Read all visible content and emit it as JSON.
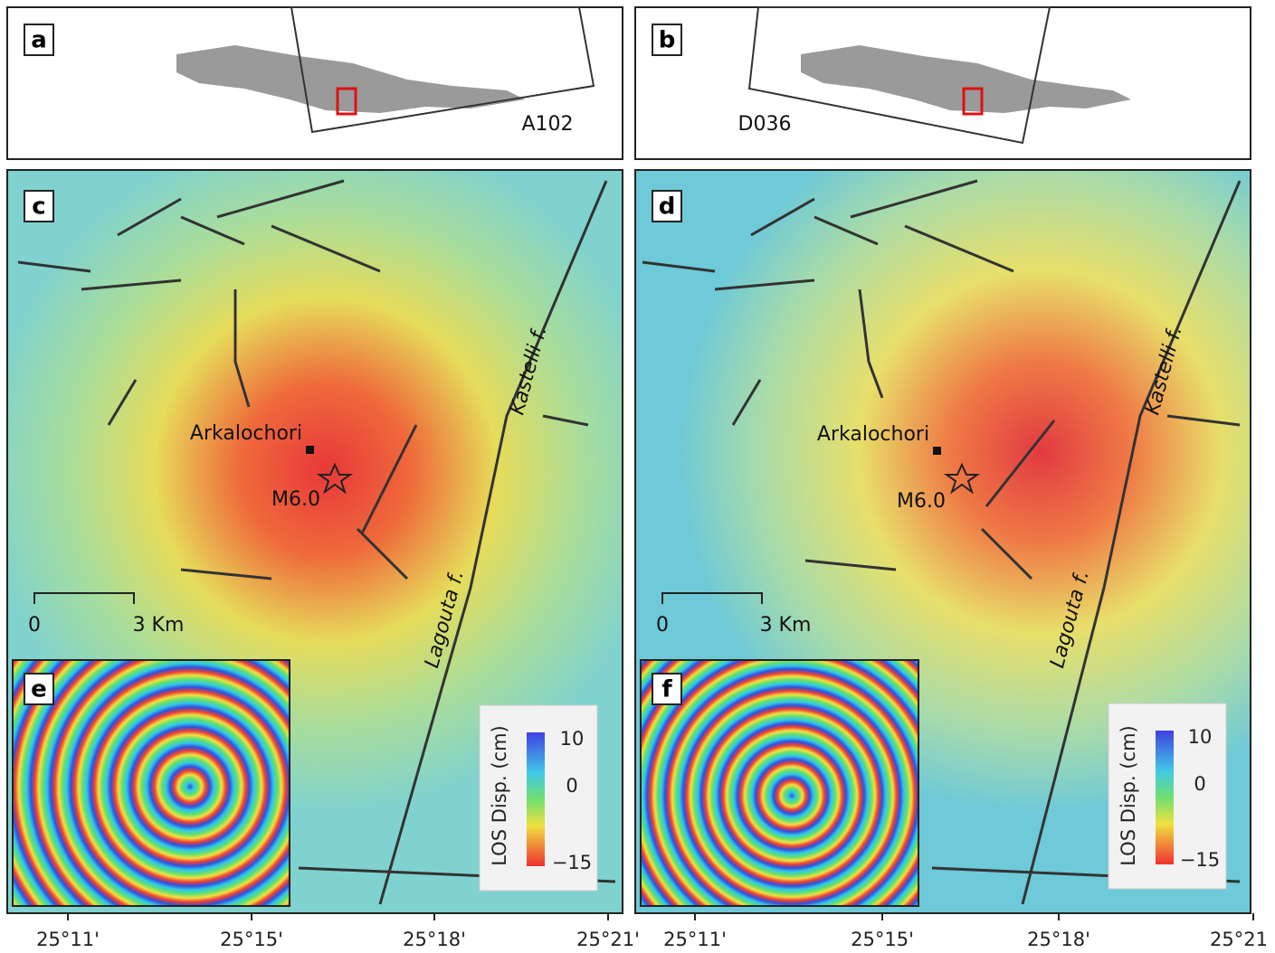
{
  "panels": [
    {
      "label": "a",
      "track": "A102"
    },
    {
      "label": "b",
      "track": "D036"
    },
    {
      "label": "c",
      "town": "Arkalochori",
      "event": "M6.0",
      "scale_start": "0",
      "scale_end": "3 Km",
      "fault_east": "Kastelli f.",
      "fault_south": "Lagouta f.",
      "x_ticks": [
        "25°11'",
        "25°15'",
        "25°18'",
        "25°21'"
      ]
    },
    {
      "label": "d",
      "town": "Arkalochori",
      "event": "M6.0",
      "scale_start": "0",
      "scale_end": "3 Km",
      "fault_east": "Kastelli f.",
      "fault_south": "Lagouta f.",
      "x_ticks": [
        "25°11'",
        "25°15'",
        "25°18'",
        "25°21"
      ]
    },
    {
      "label": "e",
      "colorbar_title": "LOS Disp. (cm)",
      "colorbar_ticks": [
        "10",
        "0",
        "−15"
      ]
    },
    {
      "label": "f",
      "colorbar_title": "LOS Disp. (cm)",
      "colorbar_ticks": [
        "10",
        "0",
        "−15"
      ]
    }
  ]
}
